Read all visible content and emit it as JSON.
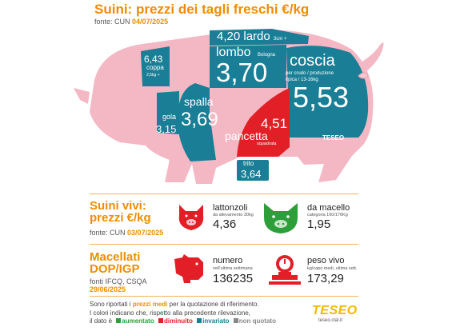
{
  "header": {
    "title": "Suini: prezzi dei tagli freschi €/kg",
    "fonte_label": "fonte: CUN",
    "fonte_date": "04/07/2025"
  },
  "cuts": {
    "lardo": {
      "price": "4,20",
      "name": "lardo",
      "note": "3cm +"
    },
    "coppa": {
      "price": "6,43",
      "name": "coppa",
      "note": "2,5kg +"
    },
    "lombo": {
      "name": "lombo",
      "note": "Bologna",
      "price": "3,70"
    },
    "coscia": {
      "name": "coscia",
      "note1": "per crudo / produzione",
      "note2": "tipica / 13-16kg",
      "price": "5,53"
    },
    "spalla": {
      "name": "spalla",
      "price": "3,69"
    },
    "gola": {
      "name": "gola",
      "price": "3,15"
    },
    "pancetta": {
      "price": "4,51",
      "name": "pancetta",
      "note": "squadrata"
    },
    "trito": {
      "name": "trito",
      "price": "3,64"
    }
  },
  "pig_watermark": "TESEO",
  "vivi": {
    "title_line1": "Suini vivi:",
    "title_line2": "prezzi €/kg",
    "fonte_label": "fonte: CUN",
    "fonte_date": "03/07/2025",
    "lattonzoli": {
      "label": "lattonzoli",
      "sub": "da allevamento 30kg",
      "value": "4,36"
    },
    "macello": {
      "label": "da macello",
      "sub": "categoria 160/176Kg",
      "value": "1,95"
    }
  },
  "macellati": {
    "title_line1": "Macellati",
    "title_line2": "DOP/IGP",
    "fonte_label": "fonti IFCQ, CSQA",
    "fonte_date": "29/06/2025",
    "numero": {
      "label": "numero",
      "sub": "nell'ultima settimana",
      "value": "136235"
    },
    "peso": {
      "label": "peso vivo",
      "sub": "kg/capo medi, ultima sett.",
      "value": "173,29"
    }
  },
  "legend": {
    "line1_pre": "Sono riportati i ",
    "line1_bold": "prezzi medi",
    "line1_post": " per la quotazione di riferimento.",
    "line2": "I colori indicano che, rispetto alla precedente rilevazione,",
    "line3_pre": "il dato è",
    "aumentato": "aumentato",
    "diminuito": "diminuito",
    "invariato": "invariato",
    "non_quotato": "non quotato"
  },
  "brand": {
    "logo": "TESEO",
    "url": "teseo.clal.it"
  },
  "colors": {
    "aumentato": "#2e9e3a",
    "diminuito": "#e21f26",
    "invariato": "#1a7f96",
    "non_quotato": "#888888",
    "accent": "#f08c00",
    "pig_pink": "#f4b8c4"
  }
}
